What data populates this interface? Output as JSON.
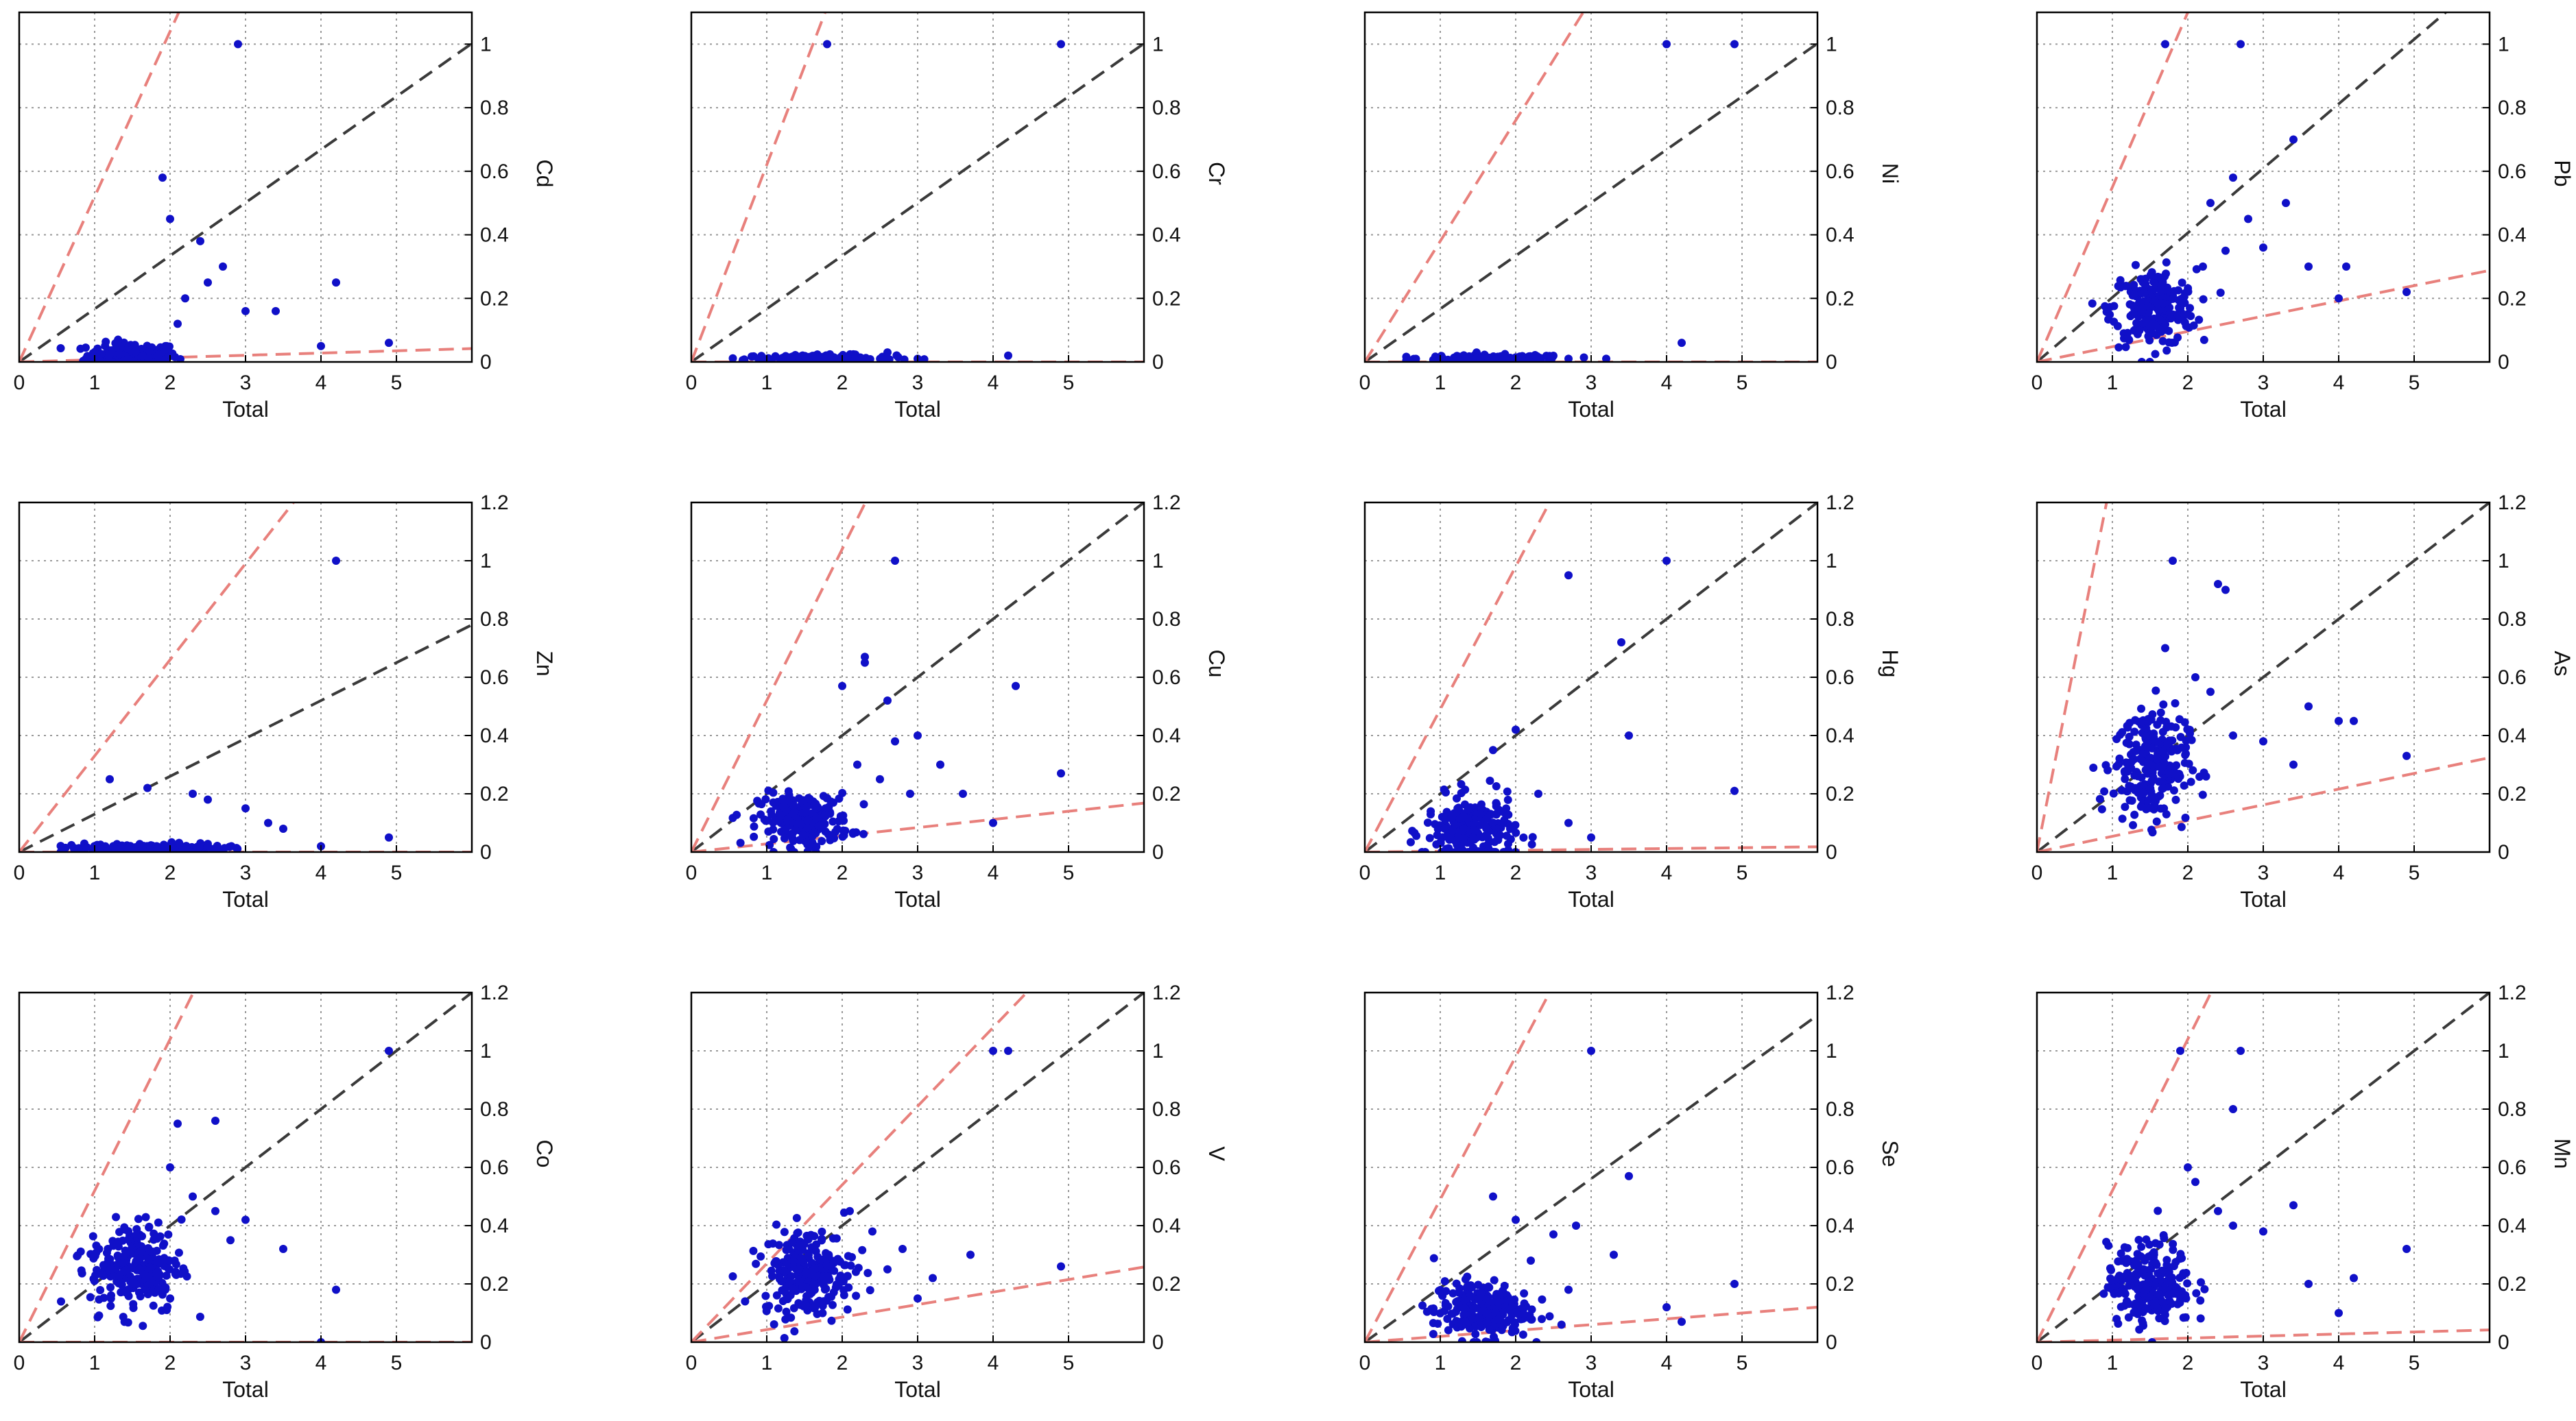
{
  "chart_data": [
    {
      "type": "scatter",
      "ylabel": "Cd",
      "xlabel": "Total",
      "xlim": [
        0,
        6
      ],
      "ylim": [
        0,
        1.1
      ],
      "xticks": [
        0,
        1,
        2,
        3,
        4,
        5
      ],
      "yticks": [
        0,
        0.2,
        0.4,
        0.6,
        0.8,
        1
      ],
      "reference_lines": {
        "black_slope": 0.167,
        "red_upper_slope": 0.52,
        "red_lower_slope": 0.007
      },
      "cluster": {
        "cx": 1.5,
        "cy": 0.02,
        "sx": 0.3,
        "sy": 0.02,
        "n": 180
      },
      "points": [
        [
          2.9,
          1.0
        ],
        [
          1.9,
          0.58
        ],
        [
          2.0,
          0.45
        ],
        [
          2.4,
          0.38
        ],
        [
          2.7,
          0.3
        ],
        [
          2.5,
          0.25
        ],
        [
          4.2,
          0.25
        ],
        [
          2.2,
          0.2
        ],
        [
          3.0,
          0.16
        ],
        [
          3.4,
          0.16
        ],
        [
          2.1,
          0.12
        ],
        [
          4.0,
          0.05
        ],
        [
          4.9,
          0.06
        ]
      ]
    },
    {
      "type": "scatter",
      "ylabel": "Cr",
      "xlabel": "Total",
      "xlim": [
        0,
        6
      ],
      "ylim": [
        0,
        1.1
      ],
      "xticks": [
        0,
        1,
        2,
        3,
        4,
        5
      ],
      "yticks": [
        0,
        0.2,
        0.4,
        0.6,
        0.8,
        1
      ],
      "reference_lines": {
        "black_slope": 0.167,
        "red_upper_slope": 0.62,
        "red_lower_slope": 0.0
      },
      "cluster": {
        "cx": 1.7,
        "cy": 0.01,
        "sx": 0.5,
        "sy": 0.006,
        "n": 150
      },
      "points": [
        [
          1.8,
          1.0
        ],
        [
          4.9,
          1.0
        ],
        [
          2.6,
          0.03
        ],
        [
          4.2,
          0.02
        ],
        [
          3.0,
          0.01
        ]
      ]
    },
    {
      "type": "scatter",
      "ylabel": "Ni",
      "xlabel": "Total",
      "xlim": [
        0,
        6
      ],
      "ylim": [
        0,
        1.1
      ],
      "xticks": [
        0,
        1,
        2,
        3,
        4,
        5
      ],
      "yticks": [
        0,
        0.2,
        0.4,
        0.6,
        0.8,
        1
      ],
      "reference_lines": {
        "black_slope": 0.167,
        "red_upper_slope": 0.38,
        "red_lower_slope": 0.0
      },
      "cluster": {
        "cx": 1.7,
        "cy": 0.01,
        "sx": 0.5,
        "sy": 0.006,
        "n": 150
      },
      "points": [
        [
          4.0,
          1.0
        ],
        [
          4.9,
          1.0
        ],
        [
          4.2,
          0.06
        ],
        [
          2.7,
          0.01
        ],
        [
          3.2,
          0.01
        ]
      ]
    },
    {
      "type": "scatter",
      "ylabel": "Pb",
      "xlabel": "Total",
      "xlim": [
        0,
        6
      ],
      "ylim": [
        0,
        1.1
      ],
      "xticks": [
        0,
        1,
        2,
        3,
        4,
        5
      ],
      "yticks": [
        0,
        0.2,
        0.4,
        0.6,
        0.8,
        1
      ],
      "reference_lines": {
        "black_slope": 0.203,
        "red_upper_slope": 0.55,
        "red_lower_slope": 0.048
      },
      "cluster": {
        "cx": 1.55,
        "cy": 0.17,
        "sx": 0.28,
        "sy": 0.06,
        "n": 220
      },
      "points": [
        [
          1.7,
          1.0
        ],
        [
          2.7,
          1.0
        ],
        [
          3.4,
          0.7
        ],
        [
          3.3,
          0.5
        ],
        [
          2.6,
          0.58
        ],
        [
          2.3,
          0.5
        ],
        [
          2.8,
          0.45
        ],
        [
          3.0,
          0.36
        ],
        [
          3.6,
          0.3
        ],
        [
          4.1,
          0.3
        ],
        [
          4.0,
          0.2
        ],
        [
          4.9,
          0.22
        ],
        [
          2.2,
          0.3
        ],
        [
          2.5,
          0.35
        ]
      ]
    },
    {
      "type": "scatter",
      "ylabel": "Zn",
      "xlabel": "Total",
      "xlim": [
        0,
        6
      ],
      "ylim": [
        0,
        1.2
      ],
      "xticks": [
        0,
        1,
        2,
        3,
        4,
        5
      ],
      "yticks": [
        0,
        0.2,
        0.4,
        0.6,
        0.8,
        1,
        1.2
      ],
      "reference_lines": {
        "black_slope": 0.13,
        "red_upper_slope": 0.33,
        "red_lower_slope": 0.0
      },
      "cluster": {
        "cx": 1.7,
        "cy": 0.01,
        "sx": 0.5,
        "sy": 0.01,
        "n": 160
      },
      "points": [
        [
          4.2,
          1.0
        ],
        [
          1.2,
          0.25
        ],
        [
          1.7,
          0.22
        ],
        [
          2.3,
          0.2
        ],
        [
          2.5,
          0.18
        ],
        [
          3.0,
          0.15
        ],
        [
          3.3,
          0.1
        ],
        [
          3.5,
          0.08
        ],
        [
          4.9,
          0.05
        ],
        [
          4.0,
          0.02
        ]
      ]
    },
    {
      "type": "scatter",
      "ylabel": "Cu",
      "xlabel": "Total",
      "xlim": [
        0,
        6
      ],
      "ylim": [
        0,
        1.2
      ],
      "xticks": [
        0,
        1,
        2,
        3,
        4,
        5
      ],
      "yticks": [
        0,
        0.2,
        0.4,
        0.6,
        0.8,
        1,
        1.2
      ],
      "reference_lines": {
        "black_slope": 0.2,
        "red_upper_slope": 0.52,
        "red_lower_slope": 0.028
      },
      "cluster": {
        "cx": 1.5,
        "cy": 0.11,
        "sx": 0.3,
        "sy": 0.045,
        "n": 230
      },
      "points": [
        [
          2.7,
          1.0
        ],
        [
          2.3,
          0.67
        ],
        [
          2.3,
          0.65
        ],
        [
          2.0,
          0.57
        ],
        [
          2.6,
          0.52
        ],
        [
          4.3,
          0.57
        ],
        [
          3.0,
          0.4
        ],
        [
          2.7,
          0.38
        ],
        [
          2.2,
          0.3
        ],
        [
          3.3,
          0.3
        ],
        [
          4.9,
          0.27
        ],
        [
          2.9,
          0.2
        ],
        [
          3.6,
          0.2
        ],
        [
          4.0,
          0.1
        ],
        [
          2.5,
          0.25
        ]
      ]
    },
    {
      "type": "scatter",
      "ylabel": "Hg",
      "xlabel": "Total",
      "xlim": [
        0,
        6
      ],
      "ylim": [
        0,
        1.2
      ],
      "xticks": [
        0,
        1,
        2,
        3,
        4,
        5
      ],
      "yticks": [
        0,
        0.2,
        0.4,
        0.6,
        0.8,
        1,
        1.2
      ],
      "reference_lines": {
        "black_slope": 0.2,
        "red_upper_slope": 0.49,
        "red_lower_slope": 0.003
      },
      "cluster": {
        "cx": 1.4,
        "cy": 0.07,
        "sx": 0.3,
        "sy": 0.06,
        "n": 230
      },
      "points": [
        [
          2.7,
          0.95
        ],
        [
          4.0,
          1.0
        ],
        [
          3.4,
          0.72
        ],
        [
          3.5,
          0.4
        ],
        [
          4.9,
          0.21
        ],
        [
          2.0,
          0.42
        ],
        [
          1.7,
          0.35
        ],
        [
          2.3,
          0.2
        ],
        [
          2.7,
          0.1
        ],
        [
          3.0,
          0.05
        ]
      ]
    },
    {
      "type": "scatter",
      "ylabel": "As",
      "xlabel": "Total",
      "xlim": [
        0,
        6
      ],
      "ylim": [
        0,
        1.2
      ],
      "xticks": [
        0,
        1,
        2,
        3,
        4,
        5
      ],
      "yticks": [
        0,
        0.2,
        0.4,
        0.6,
        0.8,
        1,
        1.2
      ],
      "reference_lines": {
        "black_slope": 0.2,
        "red_upper_slope": 1.3,
        "red_lower_slope": 0.054
      },
      "cluster": {
        "cx": 1.5,
        "cy": 0.3,
        "sx": 0.25,
        "sy": 0.1,
        "n": 230
      },
      "points": [
        [
          1.8,
          1.0
        ],
        [
          2.4,
          0.92
        ],
        [
          2.5,
          0.9
        ],
        [
          1.7,
          0.7
        ],
        [
          2.1,
          0.6
        ],
        [
          2.3,
          0.55
        ],
        [
          3.6,
          0.5
        ],
        [
          4.0,
          0.45
        ],
        [
          4.2,
          0.45
        ],
        [
          2.6,
          0.4
        ],
        [
          3.0,
          0.38
        ],
        [
          4.9,
          0.33
        ],
        [
          3.4,
          0.3
        ]
      ]
    },
    {
      "type": "scatter",
      "ylabel": "Co",
      "xlabel": "Total",
      "xlim": [
        0,
        6
      ],
      "ylim": [
        0,
        1.2
      ],
      "xticks": [
        0,
        1,
        2,
        3,
        4,
        5
      ],
      "yticks": [
        0,
        0.2,
        0.4,
        0.6,
        0.8,
        1,
        1.2
      ],
      "reference_lines": {
        "black_slope": 0.2,
        "red_upper_slope": 0.52,
        "red_lower_slope": 0.0
      },
      "cluster": {
        "cx": 1.55,
        "cy": 0.26,
        "sx": 0.3,
        "sy": 0.08,
        "n": 240
      },
      "points": [
        [
          4.9,
          1.0
        ],
        [
          2.6,
          0.76
        ],
        [
          2.1,
          0.75
        ],
        [
          2.0,
          0.6
        ],
        [
          2.3,
          0.5
        ],
        [
          2.6,
          0.45
        ],
        [
          3.0,
          0.42
        ],
        [
          3.5,
          0.32
        ],
        [
          2.8,
          0.35
        ],
        [
          4.2,
          0.18
        ],
        [
          4.0,
          0.0
        ]
      ]
    },
    {
      "type": "scatter",
      "ylabel": "V",
      "xlabel": "Total",
      "xlim": [
        0,
        6
      ],
      "ylim": [
        0,
        1.2
      ],
      "xticks": [
        0,
        1,
        2,
        3,
        4,
        5
      ],
      "yticks": [
        0,
        0.2,
        0.4,
        0.6,
        0.8,
        1,
        1.2
      ],
      "reference_lines": {
        "black_slope": 0.2,
        "red_upper_slope": 0.27,
        "red_lower_slope": 0.043
      },
      "cluster": {
        "cx": 1.55,
        "cy": 0.24,
        "sx": 0.3,
        "sy": 0.075,
        "n": 240
      },
      "points": [
        [
          4.0,
          1.0
        ],
        [
          4.2,
          1.0
        ],
        [
          2.1,
          0.45
        ],
        [
          2.4,
          0.38
        ],
        [
          2.8,
          0.32
        ],
        [
          3.7,
          0.3
        ],
        [
          3.2,
          0.22
        ],
        [
          4.9,
          0.26
        ],
        [
          2.6,
          0.25
        ],
        [
          3.0,
          0.15
        ]
      ]
    },
    {
      "type": "scatter",
      "ylabel": "Se",
      "xlabel": "Total",
      "xlim": [
        0,
        6
      ],
      "ylim": [
        0,
        1.2
      ],
      "xticks": [
        0,
        1,
        2,
        3,
        4,
        5
      ],
      "yticks": [
        0,
        0.2,
        0.4,
        0.6,
        0.8,
        1,
        1.2
      ],
      "reference_lines": {
        "black_slope": 0.187,
        "red_upper_slope": 0.49,
        "red_lower_slope": 0.02
      },
      "cluster": {
        "cx": 1.55,
        "cy": 0.11,
        "sx": 0.32,
        "sy": 0.05,
        "n": 240
      },
      "points": [
        [
          3.0,
          1.0
        ],
        [
          3.5,
          0.57
        ],
        [
          1.7,
          0.5
        ],
        [
          2.0,
          0.42
        ],
        [
          2.5,
          0.37
        ],
        [
          2.8,
          0.4
        ],
        [
          3.3,
          0.3
        ],
        [
          2.2,
          0.28
        ],
        [
          4.9,
          0.2
        ],
        [
          4.0,
          0.12
        ],
        [
          4.2,
          0.07
        ],
        [
          2.7,
          0.18
        ]
      ]
    },
    {
      "type": "scatter",
      "ylabel": "Mn",
      "xlabel": "Total",
      "xlim": [
        0,
        6
      ],
      "ylim": [
        0,
        1.2
      ],
      "xticks": [
        0,
        1,
        2,
        3,
        4,
        5
      ],
      "yticks": [
        0,
        0.2,
        0.4,
        0.6,
        0.8,
        1,
        1.2
      ],
      "reference_lines": {
        "black_slope": 0.2,
        "red_upper_slope": 0.52,
        "red_lower_slope": 0.007
      },
      "cluster": {
        "cx": 1.5,
        "cy": 0.2,
        "sx": 0.28,
        "sy": 0.07,
        "n": 230
      },
      "points": [
        [
          1.9,
          1.0
        ],
        [
          2.7,
          1.0
        ],
        [
          2.6,
          0.8
        ],
        [
          2.0,
          0.6
        ],
        [
          2.1,
          0.55
        ],
        [
          2.4,
          0.45
        ],
        [
          3.0,
          0.38
        ],
        [
          3.4,
          0.47
        ],
        [
          2.6,
          0.4
        ],
        [
          4.9,
          0.32
        ],
        [
          3.6,
          0.2
        ],
        [
          4.2,
          0.22
        ],
        [
          4.0,
          0.1
        ]
      ]
    }
  ],
  "colors": {
    "points": "#1010c8",
    "identity_line": "#3a3a3a",
    "bound_lines": "#e8807c",
    "grid": "#9a9a9a",
    "axes": "#000000"
  }
}
